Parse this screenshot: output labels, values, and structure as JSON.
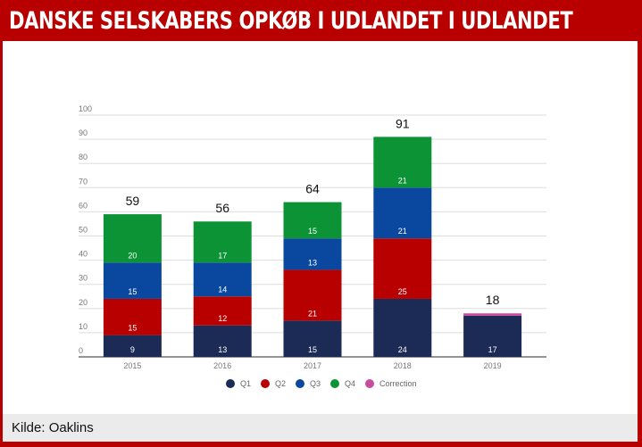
{
  "header": {
    "title": "DANSKE SELSKABERS OPKØB I UDLANDET I UDLANDET"
  },
  "footer": {
    "source": "Kilde: Oaklins"
  },
  "chart_data": {
    "type": "bar",
    "stacked": true,
    "categories": [
      "2015",
      "2016",
      "2017",
      "2018",
      "2019"
    ],
    "series": [
      {
        "name": "Q1",
        "color": "#1c2b55",
        "values": [
          9,
          13,
          15,
          24,
          17
        ]
      },
      {
        "name": "Q2",
        "color": "#b80000",
        "values": [
          15,
          12,
          21,
          25,
          0
        ]
      },
      {
        "name": "Q3",
        "color": "#0a48a0",
        "values": [
          15,
          14,
          13,
          21,
          0
        ]
      },
      {
        "name": "Q4",
        "color": "#0b9336",
        "values": [
          20,
          17,
          15,
          21,
          0
        ]
      },
      {
        "name": "Correction",
        "color": "#c94a9f",
        "values": [
          0,
          0,
          0,
          0,
          1
        ]
      }
    ],
    "totals": [
      59,
      56,
      64,
      91,
      18
    ],
    "yticks": [
      0,
      10,
      20,
      30,
      40,
      50,
      60,
      70,
      80,
      90,
      100
    ],
    "ylim": [
      0,
      100
    ],
    "grid": true,
    "legend": "bottom"
  }
}
